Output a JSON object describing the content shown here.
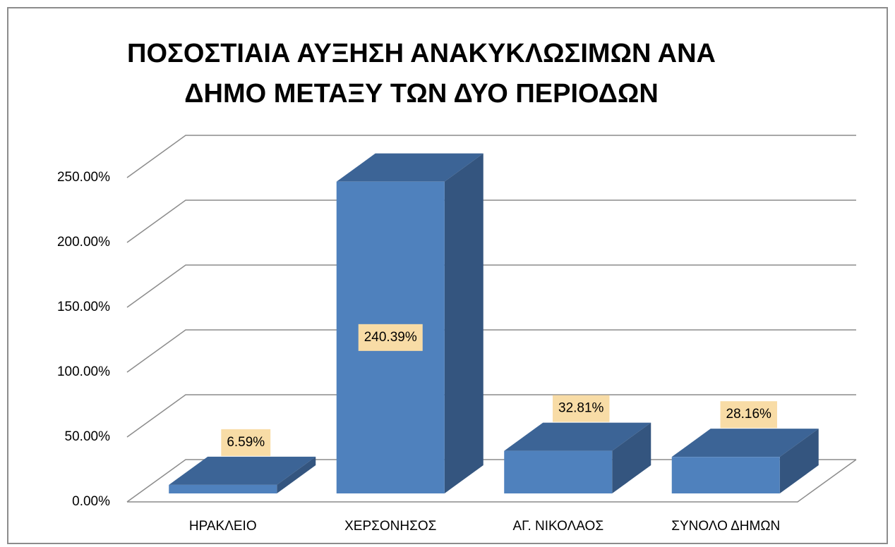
{
  "chart_data": {
    "type": "bar3d",
    "title": [
      "ΠΟΣΟΣΤΙΑΙΑ ΑΥΞΗΣΗ ΑΝΑΚΥΚΛΩΣΙΜΩΝ ΑΝΑ",
      "ΔΗΜΟ ΜΕΤΑΞΥ ΤΩΝ ΔΥΟ ΠΕΡΙΟΔΩΝ"
    ],
    "categories": [
      "ΗΡΑΚΛΕΙΟ",
      "ΧΕΡΣΟΝΗΣΟΣ",
      "ΑΓ. ΝΙΚΟΛΑΟΣ",
      "ΣΥΝΟΛΟ ΔΗΜΩΝ"
    ],
    "values": [
      6.59,
      240.39,
      32.81,
      28.16
    ],
    "value_labels": [
      "6.59%",
      "240.39%",
      "32.81%",
      "28.16%"
    ],
    "color": "#4f81bd",
    "ylim": [
      0,
      250
    ],
    "yticks": [
      {
        "value": 0,
        "label": "0.00%"
      },
      {
        "value": 50,
        "label": "50.00%"
      },
      {
        "value": 100,
        "label": "100.00%"
      },
      {
        "value": 150,
        "label": "150.00%"
      },
      {
        "value": 200,
        "label": "200.00%"
      },
      {
        "value": 250,
        "label": "250.00%"
      }
    ],
    "grid": true
  }
}
